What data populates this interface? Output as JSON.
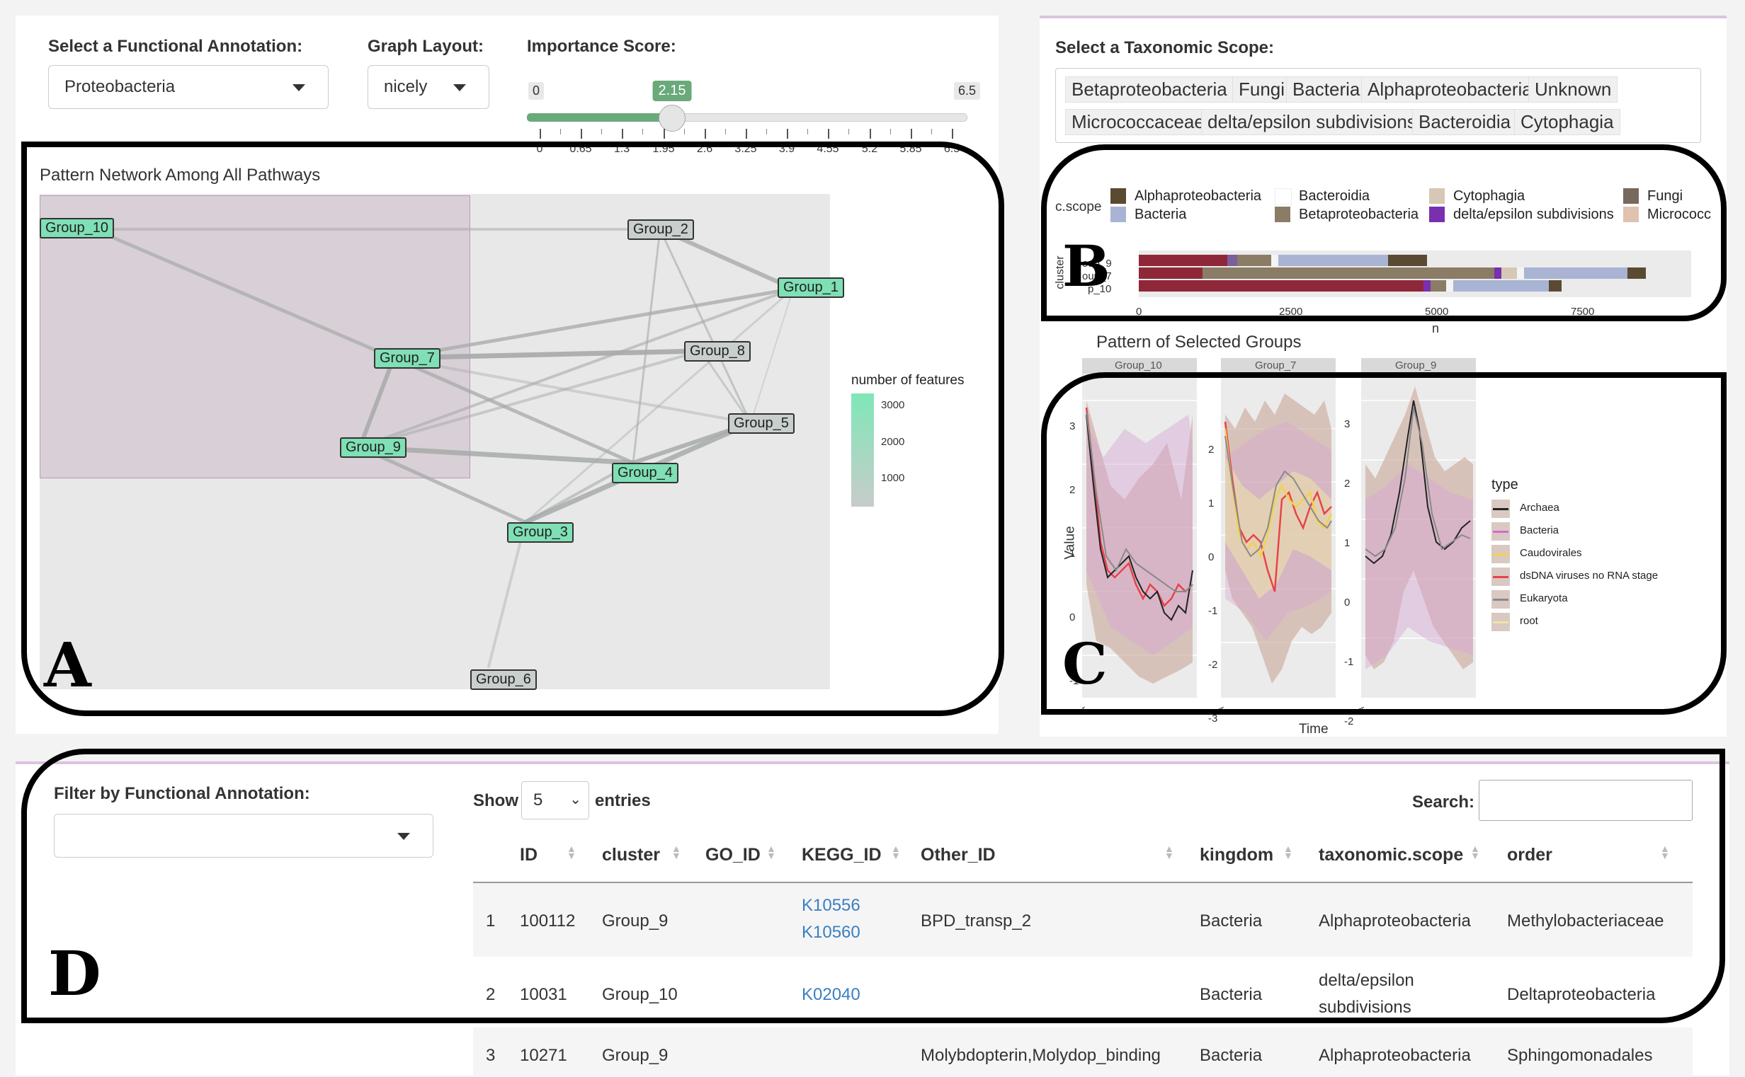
{
  "panel_a": {
    "annotation_label": "Select a Functional Annotation:",
    "annotation_value": "Proteobacteria",
    "layout_label": "Graph Layout:",
    "layout_value": "nicely",
    "importance_label": "Importance Score:",
    "slider": {
      "min": "0",
      "max": "6.5",
      "value": "2.15",
      "value_fraction": 0.331
    },
    "slider_ticks": [
      "0",
      "0.65",
      "1.3",
      "1.95",
      "2.6",
      "3.25",
      "3.9",
      "4.55",
      "5.2",
      "5.85",
      "6.5"
    ],
    "network_title": "Pattern Network Among All Pathways",
    "nodes": {
      "g10": "Group_10",
      "g2": "Group_2",
      "g1": "Group_1",
      "g7": "Group_7",
      "g8": "Group_8",
      "g5": "Group_5",
      "g9": "Group_9",
      "g4": "Group_4",
      "g3": "Group_3",
      "g6": "Group_6"
    },
    "legend_title": "number of features",
    "legend_ticks": [
      "3000",
      "2000",
      "1000"
    ],
    "letter": "A"
  },
  "panel_b": {
    "scope_label": "Select a Taxonomic Scope:",
    "tags": [
      "Betaproteobacteria",
      "Fungi",
      "Bacteria",
      "Alphaproteobacteria",
      "Unknown",
      "Micrococcaceae",
      "delta/epsilon subdivisions",
      "Bacteroidia",
      "Cytophagia"
    ],
    "legend_axis": "c.scope",
    "legend": [
      {
        "name": "Alphaproteobacteria",
        "color": "#5a4a32"
      },
      {
        "name": "Bacteria",
        "color": "#a9b4d4"
      },
      {
        "name": "Bacteroidia",
        "color": "#ffffff"
      },
      {
        "name": "Betaproteobacteria",
        "color": "#8b7c66"
      },
      {
        "name": "Cytophagia",
        "color": "#d6c8b4"
      },
      {
        "name": "delta/epsilon subdivisions",
        "color": "#7a2fb0"
      },
      {
        "name": "Fungi",
        "color": "#77695b"
      },
      {
        "name": "Micrococc",
        "color": "#e0c2b0"
      }
    ],
    "y_axis": "cluster",
    "rows": [
      "oup_9",
      "oup_7",
      "p_10"
    ],
    "x_ticks": [
      "0",
      "2500",
      "5000",
      "7500"
    ],
    "x_label": "n",
    "letter": "B"
  },
  "panel_c": {
    "title": "Pattern of Selected Groups",
    "facets": [
      "Group_10",
      "Group_7",
      "Group_9"
    ],
    "y_label": "Value",
    "x_label": "Time",
    "legend_title": "type",
    "legend": [
      {
        "name": "Archaea",
        "color": "#222222"
      },
      {
        "name": "Bacteria",
        "color": "#d36ad6"
      },
      {
        "name": "Caudovirales",
        "color": "#f2d24a"
      },
      {
        "name": "dsDNA viruses  no RNA stage",
        "color": "#e8424a"
      },
      {
        "name": "Eukaryota",
        "color": "#8a8a8a"
      },
      {
        "name": "root",
        "color": "#ece6a8"
      }
    ],
    "facet_ticks": [
      [
        "3",
        "2",
        "1",
        "0",
        "-1"
      ],
      [
        "2",
        "1",
        "0",
        "-1",
        "-2",
        "-3"
      ],
      [
        "3",
        "2",
        "1",
        "0",
        "-1",
        "-2"
      ]
    ],
    "letter": "C"
  },
  "panel_d": {
    "filter_label": "Filter by Functional Annotation:",
    "show_label": "Show",
    "entries_value": "5",
    "entries_label": "entries",
    "search_label": "Search:",
    "columns": [
      "ID",
      "cluster",
      "GO_ID",
      "KEGG_ID",
      "Other_ID",
      "kingdom",
      "taxonomic.scope",
      "order"
    ],
    "rows": [
      {
        "n": "1",
        "id": "100112",
        "cluster": "Group_9",
        "go": "",
        "kegg1": "K10556",
        "kegg2": "K10560",
        "other": "BPD_transp_2",
        "kingdom": "Bacteria",
        "scope1": "Alphaproteobacteria",
        "scope2": "",
        "order": "Methylobacteriaceae"
      },
      {
        "n": "2",
        "id": "10031",
        "cluster": "Group_10",
        "go": "",
        "kegg1": "K02040",
        "kegg2": "",
        "other": "",
        "kingdom": "Bacteria",
        "scope1": "delta/epsilon",
        "scope2": "subdivisions",
        "order": "Deltaproteobacteria"
      },
      {
        "n": "3",
        "id": "10271",
        "cluster": "Group_9",
        "go": "",
        "kegg1": "",
        "kegg2": "",
        "other": "Molybdopterin,Molydop_binding",
        "kingdom": "Bacteria",
        "scope1": "Alphaproteobacteria",
        "scope2": "",
        "order": "Sphingomonadales"
      }
    ],
    "letter": "D"
  }
}
